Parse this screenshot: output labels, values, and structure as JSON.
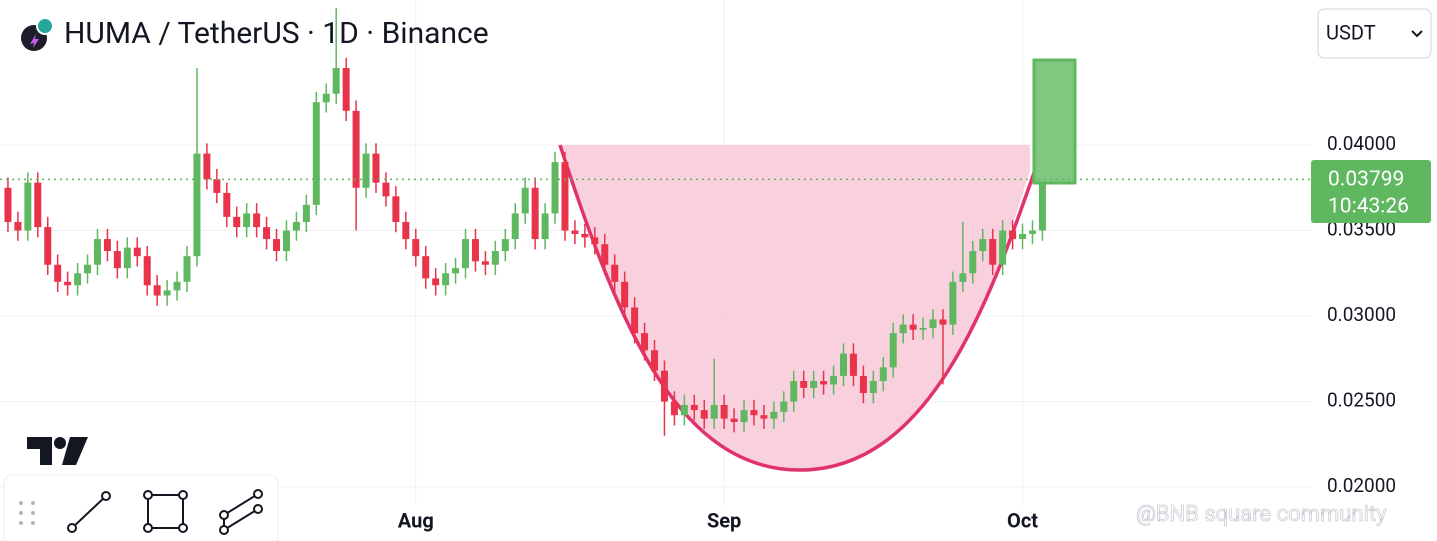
{
  "chart_data": {
    "type": "candlestick",
    "title": "HUMA / TetherUS · 1D · Binance",
    "currency": "USDT",
    "countdown": "10:43:26",
    "watermark": "@BNB square community",
    "up_color": "#5fb760",
    "down_color": "#e8334a",
    "grid": true,
    "open": [
      0.0375,
      0.0355,
      0.035,
      0.0378,
      0.0352,
      0.033,
      0.032,
      0.0318,
      0.0325,
      0.033,
      0.0345,
      0.0338,
      0.0328,
      0.034,
      0.0335,
      0.0318,
      0.0312,
      0.0315,
      0.032,
      0.0335,
      0.0395,
      0.038,
      0.0372,
      0.0358,
      0.0352,
      0.036,
      0.0352,
      0.0345,
      0.0338,
      0.035,
      0.0355,
      0.0365,
      0.0425,
      0.043,
      0.0445,
      0.042,
      0.0375,
      0.0395,
      0.0378,
      0.037,
      0.0355,
      0.0345,
      0.0335,
      0.0322,
      0.0318,
      0.0325,
      0.0328,
      0.0345,
      0.0332,
      0.033,
      0.0338,
      0.0345,
      0.036,
      0.0375,
      0.0345,
      0.036,
      0.039,
      0.035,
      0.0348,
      0.0346,
      0.0342,
      0.033,
      0.032,
      0.0305,
      0.029,
      0.028,
      0.0268,
      0.025,
      0.0242,
      0.0248,
      0.0245,
      0.024,
      0.0248,
      0.024,
      0.0238,
      0.0245,
      0.0242,
      0.024,
      0.0244,
      0.025,
      0.0262,
      0.0258,
      0.0262,
      0.026,
      0.0265,
      0.0278,
      0.0265,
      0.0255,
      0.0262,
      0.027,
      0.029,
      0.0295,
      0.0292,
      0.0293,
      0.0298,
      0.0295,
      0.032,
      0.0325,
      0.0338,
      0.0345,
      0.033,
      0.035,
      0.0345,
      0.0348,
      0.035
    ],
    "high": [
      0.0381,
      0.0361,
      0.0384,
      0.0384,
      0.0358,
      0.0336,
      0.0326,
      0.0331,
      0.0336,
      0.0351,
      0.0351,
      0.0344,
      0.0346,
      0.0346,
      0.0341,
      0.0324,
      0.0321,
      0.0326,
      0.0341,
      0.0445,
      0.0401,
      0.0386,
      0.0378,
      0.0364,
      0.0366,
      0.0366,
      0.0358,
      0.0351,
      0.0356,
      0.0361,
      0.0371,
      0.0431,
      0.0436,
      0.048,
      0.0451,
      0.0426,
      0.0401,
      0.0401,
      0.0384,
      0.0376,
      0.0361,
      0.0351,
      0.0341,
      0.0328,
      0.0331,
      0.0334,
      0.0351,
      0.0351,
      0.0338,
      0.0344,
      0.0351,
      0.0366,
      0.0381,
      0.0381,
      0.0366,
      0.0396,
      0.0396,
      0.0356,
      0.0354,
      0.0352,
      0.0348,
      0.0336,
      0.0326,
      0.0311,
      0.0296,
      0.0286,
      0.0274,
      0.0256,
      0.0254,
      0.0254,
      0.0251,
      0.0275,
      0.0254,
      0.0246,
      0.0251,
      0.0251,
      0.0248,
      0.025,
      0.0256,
      0.0268,
      0.0268,
      0.0268,
      0.0268,
      0.0271,
      0.0284,
      0.0284,
      0.0271,
      0.0268,
      0.0276,
      0.0296,
      0.0301,
      0.0301,
      0.0299,
      0.0304,
      0.0304,
      0.0326,
      0.0355,
      0.0344,
      0.0351,
      0.0351,
      0.0356,
      0.0356,
      0.0354,
      0.0356,
      0.0388
    ],
    "low": [
      0.0349,
      0.0344,
      0.0344,
      0.0346,
      0.0324,
      0.0314,
      0.0312,
      0.0312,
      0.0319,
      0.0324,
      0.0332,
      0.0322,
      0.0322,
      0.0329,
      0.0312,
      0.0306,
      0.0306,
      0.0309,
      0.0314,
      0.0329,
      0.0374,
      0.0366,
      0.0352,
      0.0346,
      0.0346,
      0.0346,
      0.0339,
      0.0332,
      0.0332,
      0.0344,
      0.0349,
      0.0359,
      0.0419,
      0.0424,
      0.0414,
      0.035,
      0.0369,
      0.0372,
      0.0364,
      0.0349,
      0.0339,
      0.0329,
      0.0316,
      0.0312,
      0.0312,
      0.0319,
      0.0322,
      0.0326,
      0.0324,
      0.0324,
      0.0332,
      0.0339,
      0.0354,
      0.0339,
      0.0339,
      0.0354,
      0.0344,
      0.0342,
      0.034,
      0.0336,
      0.0324,
      0.0314,
      0.0299,
      0.0284,
      0.0274,
      0.0262,
      0.023,
      0.0236,
      0.0236,
      0.0239,
      0.0234,
      0.0234,
      0.0234,
      0.0232,
      0.0232,
      0.0236,
      0.0234,
      0.0234,
      0.0238,
      0.0244,
      0.0252,
      0.0252,
      0.0254,
      0.0254,
      0.0259,
      0.0259,
      0.0249,
      0.0249,
      0.0256,
      0.0264,
      0.0284,
      0.0286,
      0.0286,
      0.0287,
      0.026,
      0.0289,
      0.0314,
      0.0319,
      0.0332,
      0.0324,
      0.0324,
      0.0339,
      0.0339,
      0.0342,
      0.0344
    ],
    "close": [
      0.0355,
      0.035,
      0.0378,
      0.0352,
      0.033,
      0.032,
      0.0318,
      0.0325,
      0.033,
      0.0345,
      0.0338,
      0.0328,
      0.034,
      0.0335,
      0.0318,
      0.0312,
      0.0315,
      0.032,
      0.0335,
      0.0395,
      0.038,
      0.0372,
      0.0358,
      0.0352,
      0.036,
      0.0352,
      0.0345,
      0.0338,
      0.035,
      0.0355,
      0.0365,
      0.0425,
      0.043,
      0.0445,
      0.042,
      0.0375,
      0.0395,
      0.0378,
      0.037,
      0.0355,
      0.0345,
      0.0335,
      0.0322,
      0.0318,
      0.0325,
      0.0328,
      0.0345,
      0.0332,
      0.033,
      0.0338,
      0.0345,
      0.036,
      0.0375,
      0.0345,
      0.036,
      0.039,
      0.035,
      0.0348,
      0.0346,
      0.0342,
      0.033,
      0.032,
      0.0305,
      0.029,
      0.028,
      0.0268,
      0.025,
      0.0242,
      0.0248,
      0.0245,
      0.024,
      0.0248,
      0.024,
      0.0238,
      0.0245,
      0.0242,
      0.024,
      0.0244,
      0.025,
      0.0262,
      0.0258,
      0.0262,
      0.026,
      0.0265,
      0.0278,
      0.0265,
      0.0255,
      0.0262,
      0.027,
      0.029,
      0.0295,
      0.0292,
      0.0293,
      0.0298,
      0.0295,
      0.032,
      0.0325,
      0.0338,
      0.0345,
      0.033,
      0.035,
      0.0345,
      0.0348,
      0.035,
      0.03799
    ],
    "xlim": [
      -0.8,
      130.9
    ],
    "xticks": [
      {
        "value": 41,
        "label": "Aug"
      },
      {
        "value": 72,
        "label": "Sep"
      },
      {
        "value": 102,
        "label": "Oct"
      }
    ],
    "ylim": [
      0.01895,
      0.04848
    ],
    "yticks": [
      {
        "value": 0.02,
        "label": "0.02000"
      },
      {
        "value": 0.025,
        "label": "0.02500"
      },
      {
        "value": 0.03,
        "label": "0.03000"
      },
      {
        "value": 0.035,
        "label": "0.03500"
      },
      {
        "value": 0.04,
        "label": "0.04000"
      }
    ]
  }
}
